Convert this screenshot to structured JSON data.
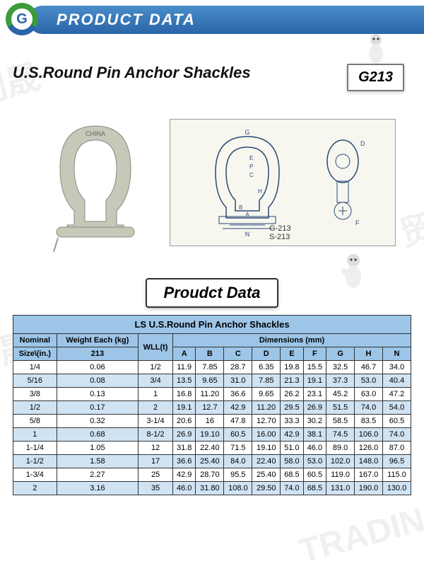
{
  "banner": {
    "title": "PRODUCT DATA"
  },
  "product": {
    "title": "U.S.Round Pin Anchor Shackles",
    "model": "G213"
  },
  "diagram": {
    "label1": "G-213",
    "label2": "S-213"
  },
  "tableSection": {
    "title": "Proudct Data"
  },
  "table": {
    "mainTitle": "LS U.S.Round Pin Anchor Shackles",
    "headers": {
      "nominal": "Nominal",
      "weight": "Weight Each (kg)",
      "wll": "WLL(t)",
      "dimensions": "Dimensions (mm)",
      "sizeRow": "Size\\(in.)",
      "weightSub": "213",
      "cols": [
        "A",
        "B",
        "C",
        "D",
        "E",
        "F",
        "G",
        "H",
        "N"
      ]
    },
    "rows": [
      {
        "size": "1/4",
        "wt": "0.06",
        "wll": "1/2",
        "A": "11.9",
        "B": "7.85",
        "C": "28.7",
        "D": "6.35",
        "E": "19.8",
        "F": "15.5",
        "G": "32.5",
        "H": "46.7",
        "N": "34.0"
      },
      {
        "size": "5/16",
        "wt": "0.08",
        "wll": "3/4",
        "A": "13.5",
        "B": "9.65",
        "C": "31.0",
        "D": "7.85",
        "E": "21.3",
        "F": "19.1",
        "G": "37.3",
        "H": "53.0",
        "N": "40.4"
      },
      {
        "size": "3/8",
        "wt": "0.13",
        "wll": "1",
        "A": "16.8",
        "B": "11.20",
        "C": "36.6",
        "D": "9.65",
        "E": "26.2",
        "F": "23.1",
        "G": "45.2",
        "H": "63.0",
        "N": "47.2"
      },
      {
        "size": "1/2",
        "wt": "0.17",
        "wll": "2",
        "A": "19.1",
        "B": "12.7",
        "C": "42.9",
        "D": "11.20",
        "E": "29.5",
        "F": "26.9",
        "G": "51.5",
        "H": "74.0",
        "N": "54.0"
      },
      {
        "size": "5/8",
        "wt": "0.32",
        "wll": "3-1/4",
        "A": "20.6",
        "B": "16",
        "C": "47.8",
        "D": "12.70",
        "E": "33.3",
        "F": "30.2",
        "G": "58.5",
        "H": "83.5",
        "N": "60.5"
      },
      {
        "size": "1",
        "wt": "0.68",
        "wll": "8-1/2",
        "A": "26.9",
        "B": "19.10",
        "C": "60.5",
        "D": "16.00",
        "E": "42.9",
        "F": "38.1",
        "G": "74.5",
        "H": "106.0",
        "N": "74.0"
      },
      {
        "size": "1-1/4",
        "wt": "1.05",
        "wll": "12",
        "A": "31.8",
        "B": "22.40",
        "C": "71.5",
        "D": "19.10",
        "E": "51.0",
        "F": "46.0",
        "G": "89.0",
        "H": "126.0",
        "N": "87.0"
      },
      {
        "size": "1-1/2",
        "wt": "1.58",
        "wll": "17",
        "A": "36.6",
        "B": "25.40",
        "C": "84.0",
        "D": "22.40",
        "E": "58.0",
        "F": "53.0",
        "G": "102.0",
        "H": "148.0",
        "N": "96.5"
      },
      {
        "size": "1-3/4",
        "wt": "2.27",
        "wll": "25",
        "A": "42.9",
        "B": "28.70",
        "C": "95.5",
        "D": "25.40",
        "E": "68.5",
        "F": "60.5",
        "G": "119.0",
        "H": "167.0",
        "N": "115.0"
      },
      {
        "size": "2",
        "wt": "3.16",
        "wll": "35",
        "A": "46.0",
        "B": "31.80",
        "C": "108.0",
        "D": "29.50",
        "E": "74.0",
        "F": "68.5",
        "G": "131.0",
        "H": "190.0",
        "N": "130.0"
      }
    ]
  },
  "colors": {
    "banner_gradient_top": "#4a8cca",
    "banner_gradient_bottom": "#2a65a8",
    "table_header_bg": "#9cc5e8",
    "row_even_bg": "#d0e3f3",
    "row_odd_bg": "#ffffff",
    "border": "#333333"
  }
}
